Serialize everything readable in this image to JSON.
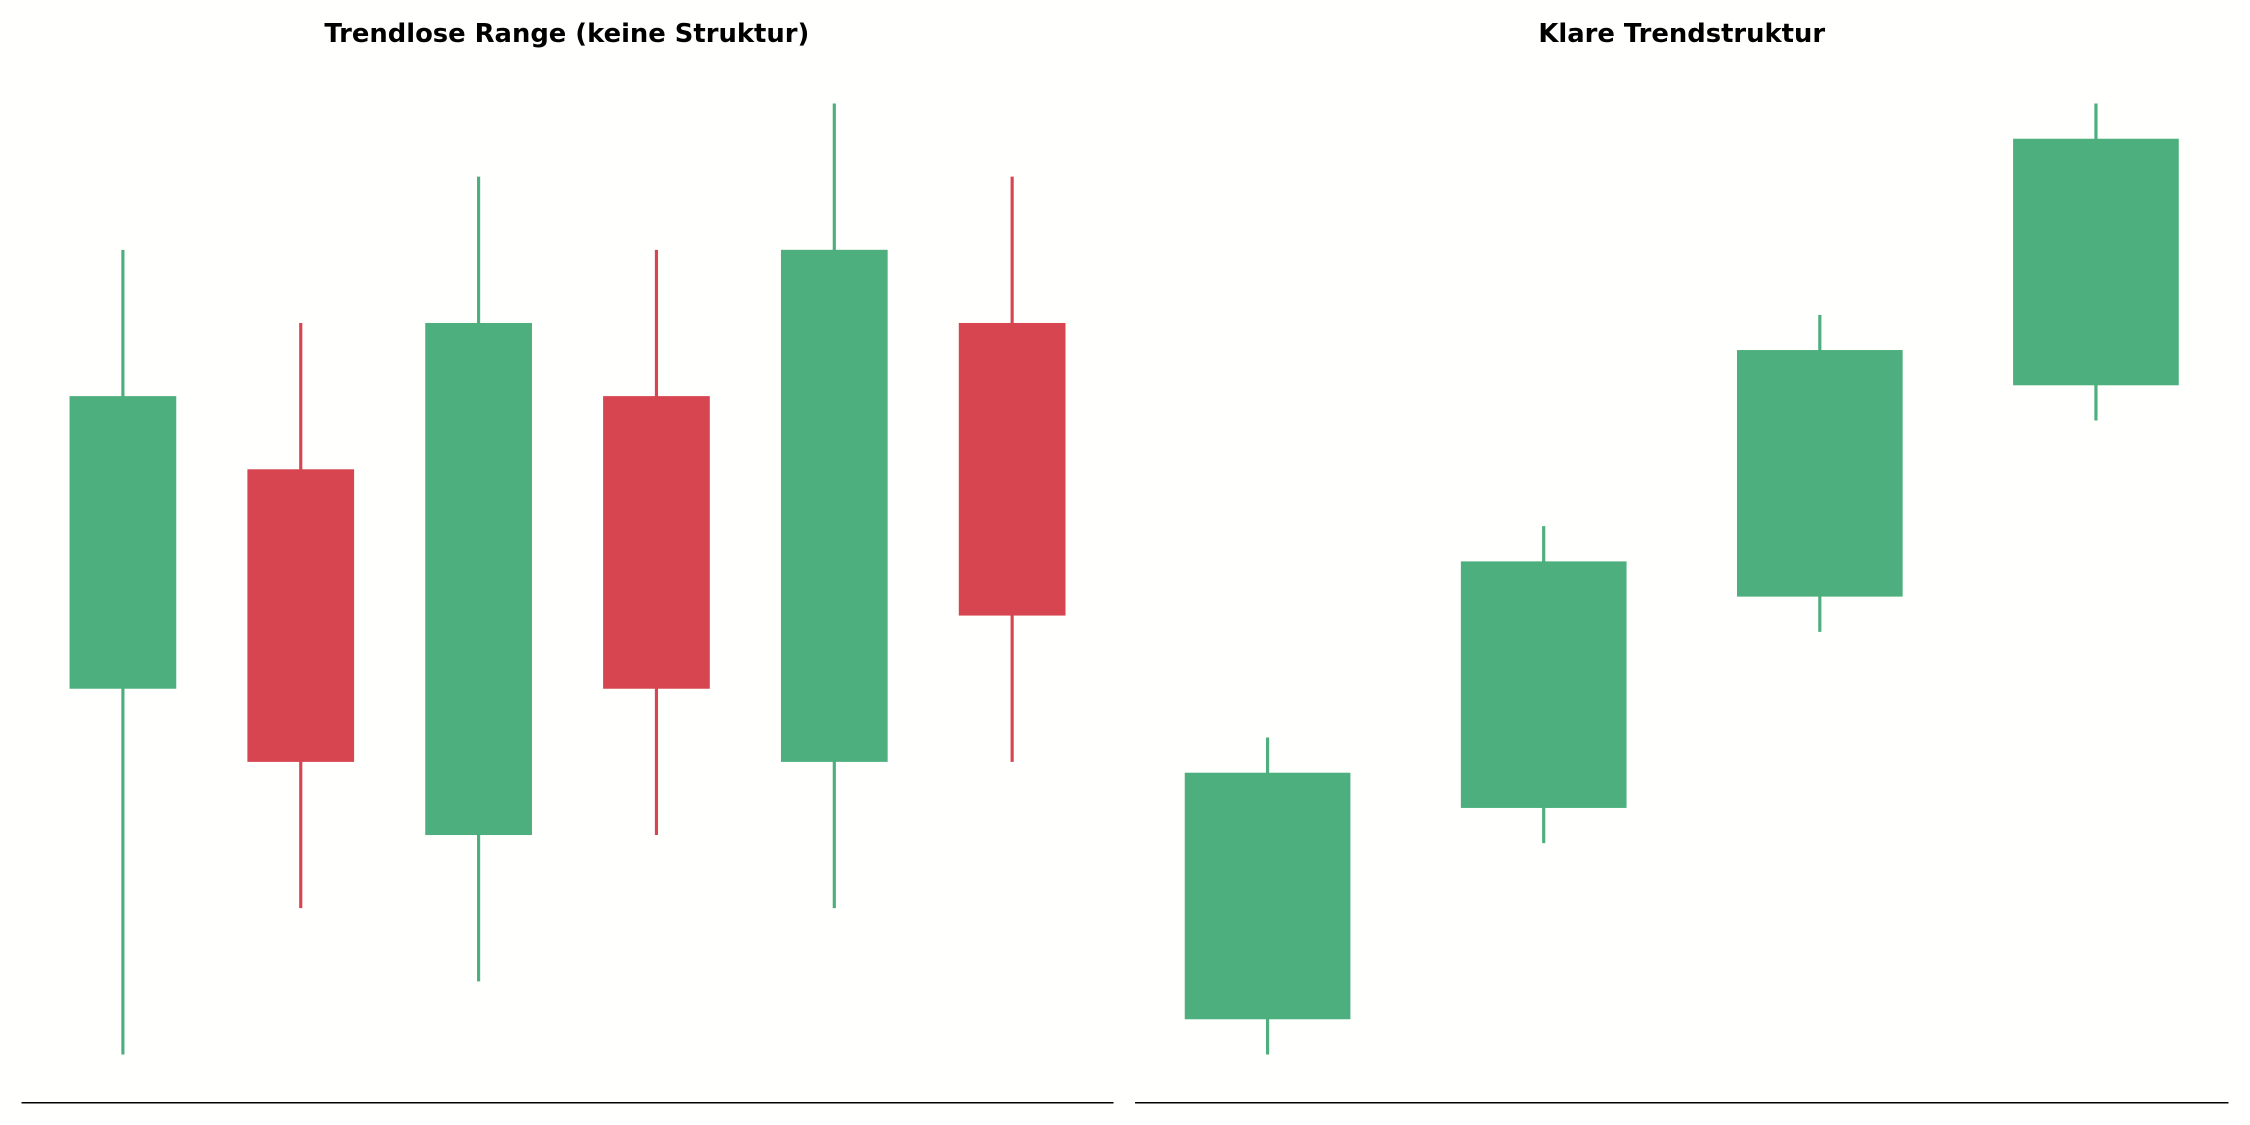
{
  "chart_data": [
    {
      "type": "candlestick",
      "title": "Trendlose Range (keine Struktur)",
      "x": [
        0,
        1,
        2,
        3,
        4,
        5
      ],
      "open": [
        5,
        8,
        3,
        9,
        4,
        10
      ],
      "high": [
        11,
        10,
        12,
        11,
        13,
        12
      ],
      "low": [
        0,
        2,
        1,
        3,
        2,
        4
      ],
      "close": [
        9,
        4,
        10,
        5,
        11,
        6
      ],
      "up_color": "#4caf7d",
      "down_color": "#d64550",
      "xlim": [
        -0.57,
        5.57
      ],
      "ylim": [
        -0.65,
        13.65
      ]
    },
    {
      "type": "candlestick",
      "title": "Klare Trendstruktur",
      "x": [
        0,
        1,
        2,
        3
      ],
      "open": [
        1,
        7,
        13,
        19
      ],
      "high": [
        9,
        15,
        21,
        27
      ],
      "low": [
        0,
        6,
        12,
        18
      ],
      "close": [
        8,
        14,
        20,
        26
      ],
      "up_color": "#4caf7d",
      "down_color": "#d64550",
      "xlim": [
        -0.48,
        3.48
      ],
      "ylim": [
        -1.35,
        28.35
      ]
    }
  ]
}
